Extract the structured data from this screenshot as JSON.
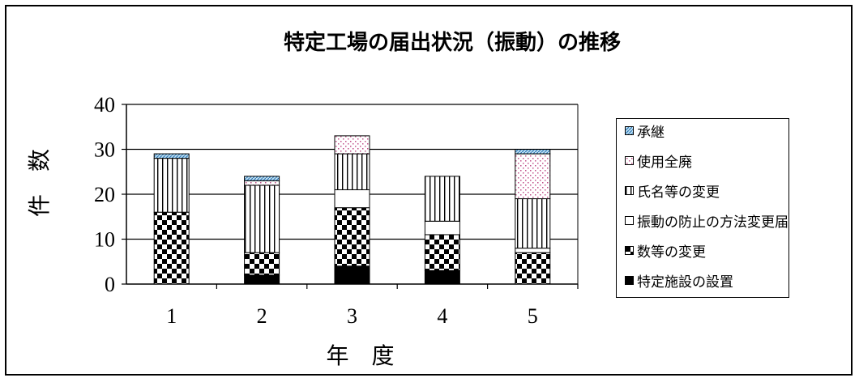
{
  "chart_data": {
    "type": "bar",
    "stacked": true,
    "title": "特定工場の届出状況（振動）の推移",
    "xlabel": "年　度",
    "ylabel": "件　数",
    "categories": [
      "1",
      "2",
      "3",
      "4",
      "5"
    ],
    "ylim": [
      0,
      40
    ],
    "yticks": [
      "0",
      "10",
      "20",
      "30",
      "40"
    ],
    "grid": true,
    "legend_position": "right",
    "series": [
      {
        "name": "特定施設の設置",
        "pattern": "solid-black",
        "values": [
          0,
          2,
          4,
          3,
          0
        ]
      },
      {
        "name": "数等の変更",
        "pattern": "checker",
        "values": [
          16,
          5,
          13,
          8,
          7
        ]
      },
      {
        "name": "振動の防止の方法変更届",
        "pattern": "white",
        "values": [
          0,
          0,
          4,
          3,
          1
        ]
      },
      {
        "name": "氏名等の変更",
        "pattern": "vertical-lines",
        "values": [
          12,
          15,
          8,
          10,
          11
        ]
      },
      {
        "name": "使用全廃",
        "pattern": "pink-dots",
        "values": [
          0,
          1,
          4,
          0,
          10
        ]
      },
      {
        "name": "承継",
        "pattern": "blue-hatch",
        "values": [
          1,
          1,
          0,
          0,
          1
        ]
      }
    ]
  }
}
